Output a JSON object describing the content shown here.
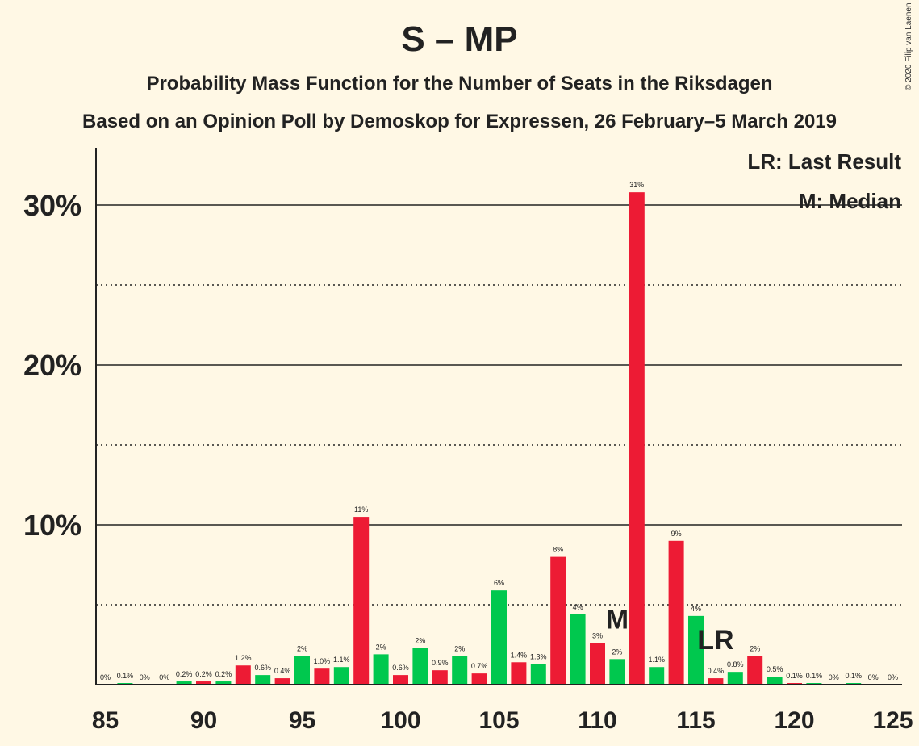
{
  "chart_data": {
    "type": "bar",
    "title": "S – MP",
    "subtitle": "Probability Mass Function for the Number of Seats in the Riksdagen",
    "subtitle2": "Based on an Opinion Poll by Demoskop for Expressen, 26 February–5 March 2019",
    "copyright": "© 2020 Filip van Laenen",
    "xlim": [
      85,
      125
    ],
    "ylim": [
      0,
      33
    ],
    "x_ticks": [
      85,
      90,
      95,
      100,
      105,
      110,
      115,
      120,
      125
    ],
    "y_ticks": [
      {
        "value": 10,
        "label": "10%",
        "style": "solid"
      },
      {
        "value": 20,
        "label": "20%",
        "style": "solid"
      },
      {
        "value": 30,
        "label": "30%",
        "style": "solid"
      }
    ],
    "y_minor": [
      5,
      15,
      25
    ],
    "legend": [
      "LR: Last Result",
      "M: Median"
    ],
    "legend_position": "top-right",
    "colors": {
      "red": "#ed1b34",
      "green": "#00c84e",
      "background": "#fff8e5"
    },
    "bars": [
      {
        "seats": 85,
        "value": 0,
        "label": "0%",
        "color": "red"
      },
      {
        "seats": 86,
        "value": 0.1,
        "label": "0.1%",
        "color": "green"
      },
      {
        "seats": 87,
        "value": 0,
        "label": "0%",
        "color": "red"
      },
      {
        "seats": 88,
        "value": 0,
        "label": "0%",
        "color": "green"
      },
      {
        "seats": 89,
        "value": 0.2,
        "label": "0.2%",
        "color": "green"
      },
      {
        "seats": 90,
        "value": 0.2,
        "label": "0.2%",
        "color": "red"
      },
      {
        "seats": 91,
        "value": 0.2,
        "label": "0.2%",
        "color": "green"
      },
      {
        "seats": 92,
        "value": 1.2,
        "label": "1.2%",
        "color": "red"
      },
      {
        "seats": 93,
        "value": 0.6,
        "label": "0.6%",
        "color": "green"
      },
      {
        "seats": 94,
        "value": 0.4,
        "label": "0.4%",
        "color": "red"
      },
      {
        "seats": 95,
        "value": 1.8,
        "label": "2%",
        "color": "green"
      },
      {
        "seats": 96,
        "value": 1.0,
        "label": "1.0%",
        "color": "red"
      },
      {
        "seats": 97,
        "value": 1.1,
        "label": "1.1%",
        "color": "green"
      },
      {
        "seats": 98,
        "value": 10.5,
        "label": "11%",
        "color": "red"
      },
      {
        "seats": 99,
        "value": 1.9,
        "label": "2%",
        "color": "green"
      },
      {
        "seats": 100,
        "value": 0.6,
        "label": "0.6%",
        "color": "red"
      },
      {
        "seats": 101,
        "value": 2.3,
        "label": "2%",
        "color": "green"
      },
      {
        "seats": 102,
        "value": 0.9,
        "label": "0.9%",
        "color": "red"
      },
      {
        "seats": 103,
        "value": 1.8,
        "label": "2%",
        "color": "green"
      },
      {
        "seats": 104,
        "value": 0.7,
        "label": "0.7%",
        "color": "red"
      },
      {
        "seats": 105,
        "value": 5.9,
        "label": "6%",
        "color": "green"
      },
      {
        "seats": 106,
        "value": 1.4,
        "label": "1.4%",
        "color": "red"
      },
      {
        "seats": 107,
        "value": 1.3,
        "label": "1.3%",
        "color": "green"
      },
      {
        "seats": 108,
        "value": 8.0,
        "label": "8%",
        "color": "red"
      },
      {
        "seats": 109,
        "value": 4.4,
        "label": "4%",
        "color": "green"
      },
      {
        "seats": 110,
        "value": 2.6,
        "label": "3%",
        "color": "red"
      },
      {
        "seats": 111,
        "value": 1.6,
        "label": "2%",
        "color": "green"
      },
      {
        "seats": 112,
        "value": 30.8,
        "label": "31%",
        "color": "red"
      },
      {
        "seats": 113,
        "value": 1.1,
        "label": "1.1%",
        "color": "green"
      },
      {
        "seats": 114,
        "value": 9.0,
        "label": "9%",
        "color": "red"
      },
      {
        "seats": 115,
        "value": 4.3,
        "label": "4%",
        "color": "green"
      },
      {
        "seats": 116,
        "value": 0.4,
        "label": "0.4%",
        "color": "red"
      },
      {
        "seats": 117,
        "value": 0.8,
        "label": "0.8%",
        "color": "green"
      },
      {
        "seats": 118,
        "value": 1.8,
        "label": "2%",
        "color": "red"
      },
      {
        "seats": 119,
        "value": 0.5,
        "label": "0.5%",
        "color": "green"
      },
      {
        "seats": 120,
        "value": 0.1,
        "label": "0.1%",
        "color": "red"
      },
      {
        "seats": 121,
        "value": 0.1,
        "label": "0.1%",
        "color": "green"
      },
      {
        "seats": 122,
        "value": 0,
        "label": "0%",
        "color": "red"
      },
      {
        "seats": 123,
        "value": 0.1,
        "label": "0.1%",
        "color": "green"
      },
      {
        "seats": 124,
        "value": 0,
        "label": "0%",
        "color": "red"
      },
      {
        "seats": 125,
        "value": 0,
        "label": "0%",
        "color": "green"
      }
    ],
    "median": {
      "seats": 111,
      "label": "M"
    },
    "last_result": {
      "seats": 116,
      "label": "LR"
    }
  }
}
